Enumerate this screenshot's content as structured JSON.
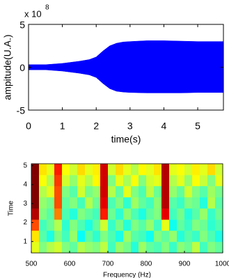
{
  "chart_data": [
    {
      "type": "envelope",
      "color": "#0000ff",
      "exponent_base": "x 10",
      "exponent": "8",
      "ylabel": "ampitude(U.A.)",
      "xlabel": "time(s)",
      "x": [
        0,
        0.5,
        1,
        1.5,
        1.8,
        2,
        2.2,
        2.4,
        2.6,
        2.8,
        3,
        3.5,
        4,
        4.5,
        5,
        5.5,
        5.76
      ],
      "upper": [
        0.3,
        0.3,
        0.45,
        0.7,
        0.9,
        1.2,
        1.9,
        2.5,
        2.8,
        2.95,
        3.0,
        3.1,
        3.1,
        3.05,
        3.0,
        3.0,
        3.0
      ],
      "lower": [
        -0.3,
        -0.3,
        -0.45,
        -0.7,
        -0.9,
        -1.2,
        -1.9,
        -2.5,
        -2.8,
        -2.9,
        -2.95,
        -3.0,
        -3.0,
        -3.0,
        -2.95,
        -2.95,
        -2.95
      ],
      "xlim": [
        0,
        5.76
      ],
      "ylim": [
        -5,
        5
      ],
      "xticks": [
        0,
        1,
        2,
        3,
        4,
        5
      ],
      "yticks": [
        -5,
        0,
        5
      ]
    },
    {
      "type": "heatmap",
      "xlabel": "Frequency (Hz)",
      "ylabel": "Time",
      "x_edges": [
        500,
        520,
        540,
        560,
        580,
        600,
        620,
        640,
        660,
        680,
        700,
        720,
        740,
        760,
        780,
        800,
        820,
        840,
        860,
        880,
        900,
        920,
        940,
        960,
        980,
        1000
      ],
      "y_edges": [
        0.4,
        0.99,
        1.58,
        2.16,
        2.75,
        3.34,
        3.93,
        4.51,
        5.1
      ],
      "z": [
        [
          0.6,
          0.5,
          0.55,
          0.58,
          0.5,
          0.47,
          0.55,
          0.52,
          0.5,
          0.56,
          0.44,
          0.52,
          0.49,
          0.41,
          0.53,
          0.47,
          0.45,
          0.5,
          0.43,
          0.51,
          0.48,
          0.56,
          0.44,
          0.5,
          0.47
        ],
        [
          0.65,
          0.46,
          0.4,
          0.5,
          0.44,
          0.52,
          0.38,
          0.47,
          0.42,
          0.5,
          0.45,
          0.4,
          0.53,
          0.46,
          0.44,
          0.39,
          0.5,
          0.47,
          0.52,
          0.41,
          0.46,
          0.43,
          0.5,
          0.45,
          0.4
        ],
        [
          0.8,
          0.44,
          0.48,
          0.55,
          0.42,
          0.5,
          0.45,
          0.4,
          0.47,
          0.58,
          0.43,
          0.49,
          0.41,
          0.5,
          0.46,
          0.52,
          0.44,
          0.6,
          0.39,
          0.47,
          0.43,
          0.5,
          0.48,
          0.42,
          0.45
        ],
        [
          0.95,
          0.5,
          0.46,
          0.75,
          0.45,
          0.41,
          0.5,
          0.47,
          0.44,
          0.85,
          0.48,
          0.42,
          0.51,
          0.45,
          0.4,
          0.47,
          0.5,
          0.9,
          0.44,
          0.49,
          0.41,
          0.46,
          0.52,
          0.43,
          0.48
        ],
        [
          1,
          0.52,
          0.49,
          0.8,
          0.47,
          0.5,
          0.44,
          0.55,
          0.48,
          0.9,
          0.45,
          0.5,
          0.42,
          0.53,
          0.47,
          0.44,
          0.51,
          0.95,
          0.46,
          0.43,
          0.5,
          0.48,
          0.41,
          0.55,
          0.46
        ],
        [
          1,
          0.55,
          0.6,
          0.8,
          0.5,
          0.46,
          0.58,
          0.49,
          0.52,
          0.92,
          0.55,
          0.47,
          0.6,
          0.5,
          0.45,
          0.56,
          0.48,
          0.95,
          0.52,
          0.47,
          0.58,
          0.5,
          0.46,
          0.53,
          0.49
        ],
        [
          1,
          0.62,
          0.55,
          0.82,
          0.58,
          0.52,
          0.6,
          0.55,
          0.63,
          0.92,
          0.5,
          0.6,
          0.54,
          0.62,
          0.5,
          0.58,
          0.6,
          0.95,
          0.55,
          0.6,
          0.52,
          0.62,
          0.57,
          0.5,
          0.6
        ],
        [
          1,
          0.65,
          0.6,
          0.85,
          0.62,
          0.58,
          0.66,
          0.6,
          0.64,
          0.92,
          0.58,
          0.66,
          0.6,
          0.55,
          0.63,
          0.6,
          0.65,
          0.95,
          0.6,
          0.62,
          0.58,
          0.64,
          0.6,
          0.66,
          0.58
        ]
      ],
      "zlim": [
        0,
        1
      ],
      "xlim": [
        500,
        1000
      ],
      "ylim": [
        0.4,
        5.1
      ],
      "xticks": [
        500,
        600,
        700,
        800,
        900,
        1000
      ],
      "yticks": [
        1,
        2,
        3,
        4,
        5
      ]
    }
  ]
}
